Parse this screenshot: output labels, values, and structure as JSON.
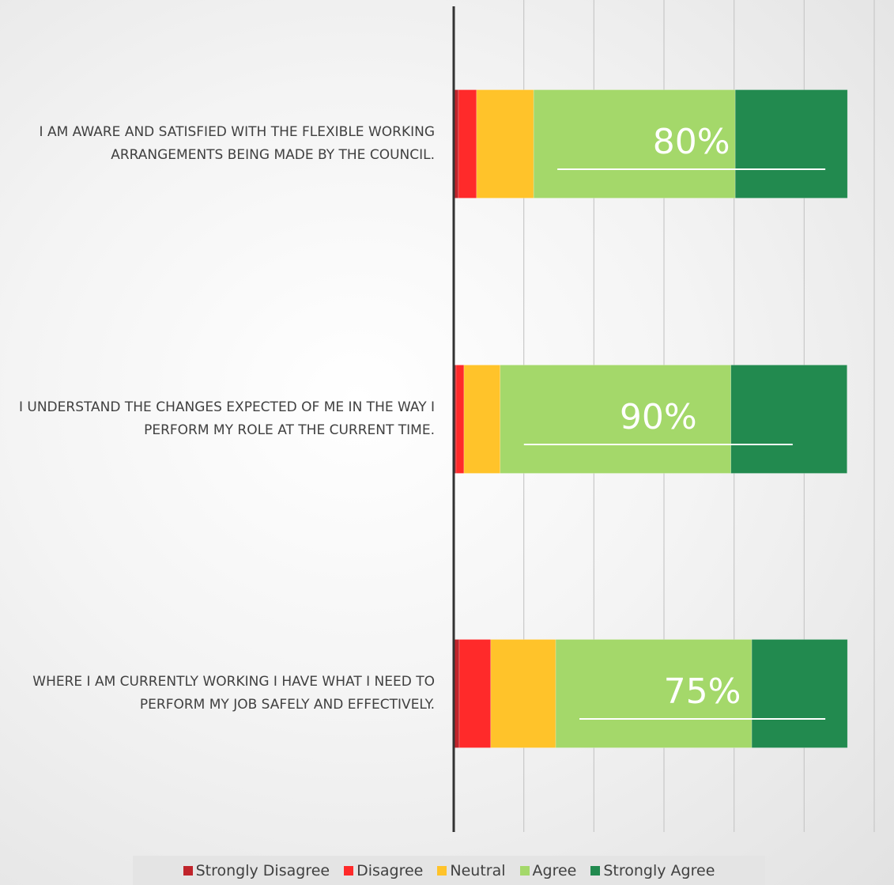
{
  "chart_data": {
    "type": "stacked-barh",
    "categories": [
      "I AM AWARE AND SATISFIED WITH THE FLEXIBLE WORKING ARRANGEMENTS BEING MADE BY THE COUNCIL.",
      "I UNDERSTAND THE CHANGES EXPECTED OF ME IN THE WAY I PERFORM MY ROLE AT THE CURRENT TIME.",
      "WHERE I AM CURRENTLY WORKING I HAVE WHAT I NEED TO PERFORM MY JOB SAFELY AND EFFECTIVELY."
    ],
    "series": [
      {
        "name": "Strongly Disagree",
        "color": "#c0242b",
        "values": [
          1.2,
          0.6,
          1.4
        ]
      },
      {
        "name": "Disagree",
        "color": "#ff2a2a",
        "values": [
          4.6,
          2.0,
          8.0
        ]
      },
      {
        "name": "Neutral",
        "color": "#ffc32a",
        "values": [
          14.5,
          9.2,
          16.5
        ]
      },
      {
        "name": "Agree",
        "color": "#a4d86a",
        "values": [
          51.2,
          58.6,
          49.8
        ]
      },
      {
        "name": "Strongly Agree",
        "color": "#228a4f",
        "values": [
          28.5,
          29.5,
          24.3
        ]
      }
    ],
    "annotations": [
      "80%",
      "90%",
      "75%"
    ],
    "xlim": [
      0,
      106.8
    ],
    "xticks": [
      0,
      17.8,
      35.6,
      53.4,
      71.2,
      89,
      106.8
    ],
    "grid": true
  }
}
